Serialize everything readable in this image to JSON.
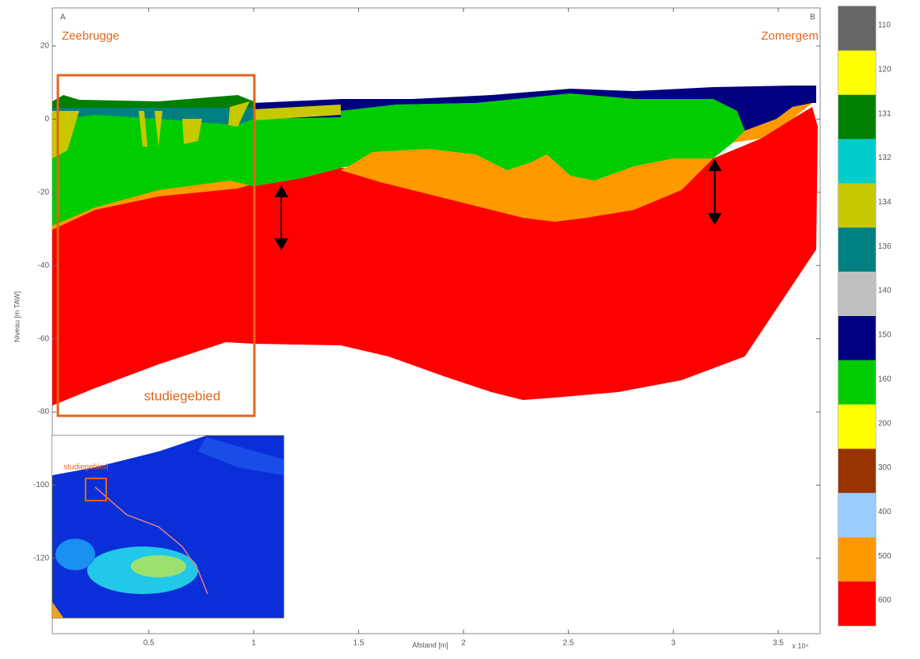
{
  "chart_data": {
    "type": "cross-section",
    "xlabel": "Afstand [m]",
    "ylabel": "Niveau [m TAW]",
    "x_multiplier": "x 10⁴",
    "xlim": [
      0.04,
      3.7
    ],
    "xticks": [
      0.5,
      1,
      1.5,
      2,
      2.5,
      3,
      3.5
    ],
    "ylim": [
      -140.6,
      30.4
    ],
    "yticks": [
      20,
      0,
      -20,
      -40,
      -60,
      -80,
      -100,
      -120
    ],
    "legend": [
      {
        "label": "110",
        "color": "#666666"
      },
      {
        "label": "120",
        "color": "#ffff00"
      },
      {
        "label": "131",
        "color": "#007f00"
      },
      {
        "label": "132",
        "color": "#00cccc"
      },
      {
        "label": "134",
        "color": "#c8c800"
      },
      {
        "label": "136",
        "color": "#008080"
      },
      {
        "label": "140",
        "color": "#c0c0c0"
      },
      {
        "label": "150",
        "color": "#000080"
      },
      {
        "label": "160",
        "color": "#00cc00"
      },
      {
        "label": "200",
        "color": "#ffff00"
      },
      {
        "label": "300",
        "color": "#993300"
      },
      {
        "label": "400",
        "color": "#99ccff"
      },
      {
        "label": "500",
        "color": "#ff9900"
      },
      {
        "label": "600",
        "color": "#ff0000"
      }
    ],
    "annotations": {
      "start_letter": "A",
      "end_letter": "B",
      "start": "Zeebrugge",
      "end": "Zomergem",
      "study_area": "studiegebied",
      "inset_label": "studiegebied"
    }
  }
}
